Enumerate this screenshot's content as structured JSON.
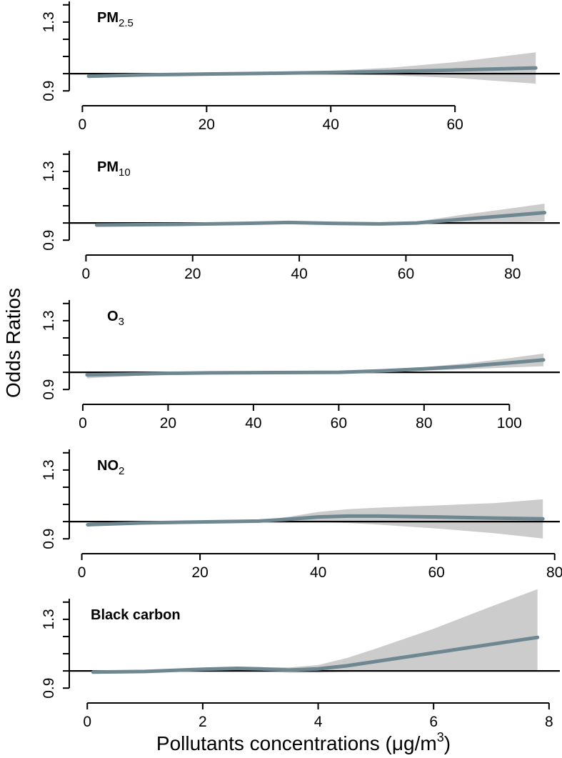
{
  "chart_data": {
    "type": "line",
    "title": "",
    "ylabel": "Odds Ratios",
    "xlabel": "Pollutants concentrations (μg/m3)",
    "xlabel_parts": {
      "main": "Pollutants concentrations (",
      "unit_mu": "μ",
      "unit_g": "g/m",
      "unit_sup": "3",
      "close": ")"
    },
    "reference_line": 1.0,
    "y_ticks": [
      0.9,
      1.1,
      1.3
    ],
    "y_tick_labels": [
      "0.9",
      "1.1",
      "1.3"
    ],
    "ylim": [
      0.88,
      1.42
    ],
    "colors": {
      "fit_line": "#6e8791",
      "ci_band": "#cccccc",
      "reference": "#000000"
    },
    "panels": [
      {
        "label_main": "PM",
        "label_sub": "2.5",
        "xlim": [
          -2,
          77
        ],
        "x_ticks": [
          0,
          20,
          40,
          60
        ],
        "x_tick_labels": [
          "0",
          "20",
          "40",
          "60"
        ],
        "x": [
          1,
          10,
          20,
          30,
          40,
          50,
          60,
          73
        ],
        "y": [
          0.985,
          0.993,
          0.998,
          1.002,
          1.007,
          1.013,
          1.021,
          1.033
        ],
        "lower": [
          0.975,
          0.988,
          0.996,
          1.0,
          0.998,
          0.99,
          0.975,
          0.942
        ],
        "upper": [
          0.995,
          0.998,
          1.0,
          1.004,
          1.016,
          1.036,
          1.067,
          1.124
        ]
      },
      {
        "label_main": "PM",
        "label_sub": "10",
        "xlim": [
          -3,
          89
        ],
        "x_ticks": [
          0,
          20,
          40,
          60,
          80
        ],
        "x_tick_labels": [
          "0",
          "20",
          "40",
          "60",
          "80"
        ],
        "x": [
          2,
          10,
          20,
          30,
          38,
          46,
          55,
          62,
          70,
          78,
          86
        ],
        "y": [
          0.988,
          0.99,
          0.993,
          0.998,
          1.003,
          0.998,
          0.995,
          1.0,
          1.02,
          1.04,
          1.06
        ],
        "lower": [
          0.98,
          0.985,
          0.99,
          0.995,
          0.998,
          0.992,
          0.988,
          0.992,
          0.995,
          1.002,
          1.008
        ],
        "upper": [
          0.996,
          0.995,
          0.996,
          1.001,
          1.008,
          1.004,
          1.002,
          1.008,
          1.045,
          1.078,
          1.112
        ]
      },
      {
        "label_main": "O",
        "label_sub": "3",
        "xlim": [
          -3,
          112
        ],
        "x_ticks": [
          0,
          20,
          40,
          60,
          80,
          100
        ],
        "x_tick_labels": [
          "0",
          "20",
          "40",
          "60",
          "80",
          "100"
        ],
        "x": [
          1,
          10,
          20,
          30,
          40,
          50,
          60,
          70,
          80,
          90,
          100,
          108
        ],
        "y": [
          0.985,
          0.989,
          0.994,
          0.997,
          0.998,
          0.999,
          1.0,
          1.008,
          1.02,
          1.035,
          1.055,
          1.072
        ],
        "lower": [
          0.965,
          0.976,
          0.989,
          0.995,
          0.997,
          0.998,
          0.998,
          1.003,
          1.01,
          1.018,
          1.028,
          1.035
        ],
        "upper": [
          1.005,
          1.002,
          0.999,
          0.999,
          0.999,
          1.0,
          1.002,
          1.013,
          1.03,
          1.052,
          1.082,
          1.109
        ]
      },
      {
        "label_main": "NO",
        "label_sub": "2",
        "xlim": [
          -2,
          81
        ],
        "x_ticks": [
          0,
          20,
          40,
          60,
          80
        ],
        "x_tick_labels": [
          "0",
          "20",
          "40",
          "60",
          "80"
        ],
        "x": [
          1,
          10,
          20,
          30,
          35,
          40,
          45,
          50,
          60,
          70,
          78
        ],
        "y": [
          0.982,
          0.992,
          0.998,
          1.003,
          1.014,
          1.027,
          1.032,
          1.032,
          1.027,
          1.02,
          1.016
        ],
        "lower": [
          0.972,
          0.987,
          0.996,
          0.998,
          1.0,
          0.998,
          0.992,
          0.983,
          0.96,
          0.932,
          0.902
        ],
        "upper": [
          0.992,
          0.997,
          1.0,
          1.008,
          1.028,
          1.056,
          1.072,
          1.081,
          1.094,
          1.108,
          1.13
        ]
      },
      {
        "label_main": "Black carbon",
        "label_sub": "",
        "xlim": [
          -0.3,
          8.2
        ],
        "x_ticks": [
          0,
          2,
          4,
          6,
          8
        ],
        "x_tick_labels": [
          "0",
          "2",
          "4",
          "6",
          "8"
        ],
        "x": [
          0.1,
          1,
          2,
          2.6,
          3,
          3.5,
          4,
          4.5,
          5,
          6,
          7,
          7.8
        ],
        "y": [
          0.993,
          0.997,
          1.01,
          1.015,
          1.012,
          1.005,
          1.012,
          1.03,
          1.055,
          1.105,
          1.155,
          1.195
        ],
        "lower": [
          0.988,
          0.994,
          1.004,
          1.008,
          1.003,
          0.99,
          0.99,
          0.996,
          1.0,
          1.0,
          1.0,
          1.0
        ],
        "upper": [
          0.998,
          1.0,
          1.016,
          1.022,
          1.021,
          1.02,
          1.034,
          1.075,
          1.13,
          1.245,
          1.375,
          1.475
        ]
      }
    ]
  }
}
